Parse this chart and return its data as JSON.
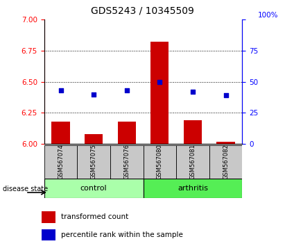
{
  "title": "GDS5243 / 10345509",
  "samples": [
    "GSM567074",
    "GSM567075",
    "GSM567076",
    "GSM567080",
    "GSM567081",
    "GSM567082"
  ],
  "groups": [
    "control",
    "control",
    "control",
    "arthritis",
    "arthritis",
    "arthritis"
  ],
  "transformed_counts": [
    6.18,
    6.08,
    6.18,
    6.82,
    6.19,
    6.02
  ],
  "percentile_ranks": [
    43,
    40,
    43,
    50,
    42,
    39
  ],
  "ylim_left": [
    6.0,
    7.0
  ],
  "ylim_right": [
    0,
    100
  ],
  "yticks_left": [
    6.0,
    6.25,
    6.5,
    6.75,
    7.0
  ],
  "yticks_right": [
    0,
    25,
    50,
    75,
    100
  ],
  "bar_color": "#cc0000",
  "dot_color": "#0000cc",
  "control_color": "#aaffaa",
  "arthritis_color": "#55ee55",
  "label_bg_color": "#c8c8c8",
  "legend_bar_label": "transformed count",
  "legend_dot_label": "percentile rank within the sample",
  "group_label": "disease state",
  "bar_width": 0.55,
  "title_fontsize": 10,
  "tick_fontsize": 7.5,
  "sample_fontsize": 6,
  "group_fontsize": 8,
  "legend_fontsize": 7.5
}
